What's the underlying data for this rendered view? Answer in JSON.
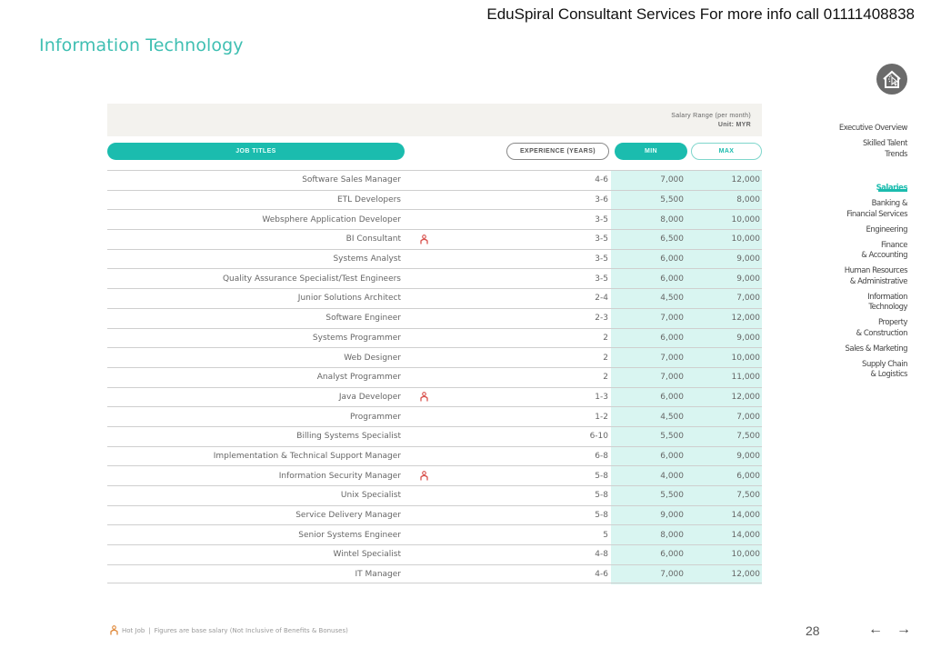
{
  "banner": "EduSpiral Consultant Services For more info call 01111408838",
  "page_title": "Information Technology",
  "salary_header": {
    "line1": "Salary Range (per month)",
    "line2": "Unit: MYR"
  },
  "columns": {
    "job_titles": "JOB TITLES",
    "experience": "EXPERIENCE (YEARS)",
    "min": "MIN",
    "max": "MAX"
  },
  "rows": [
    {
      "title": "Software Sales Manager",
      "hot": false,
      "experience": "4-6",
      "min": "7,000",
      "max": "12,000"
    },
    {
      "title": "ETL Developers",
      "hot": false,
      "experience": "3-6",
      "min": "5,500",
      "max": "8,000"
    },
    {
      "title": "Websphere Application Developer",
      "hot": false,
      "experience": "3-5",
      "min": "8,000",
      "max": "10,000"
    },
    {
      "title": "BI Consultant",
      "hot": true,
      "experience": "3-5",
      "min": "6,500",
      "max": "10,000"
    },
    {
      "title": "Systems Analyst",
      "hot": false,
      "experience": "3-5",
      "min": "6,000",
      "max": "9,000"
    },
    {
      "title": "Quality Assurance Specialist/Test Engineers",
      "hot": false,
      "experience": "3-5",
      "min": "6,000",
      "max": "9,000"
    },
    {
      "title": "Junior Solutions Architect",
      "hot": false,
      "experience": "2-4",
      "min": "4,500",
      "max": "7,000"
    },
    {
      "title": "Software Engineer",
      "hot": false,
      "experience": "2-3",
      "min": "7,000",
      "max": "12,000"
    },
    {
      "title": "Systems Programmer",
      "hot": false,
      "experience": "2",
      "min": "6,000",
      "max": "9,000"
    },
    {
      "title": "Web Designer",
      "hot": false,
      "experience": "2",
      "min": "7,000",
      "max": "10,000"
    },
    {
      "title": "Analyst Programmer",
      "hot": false,
      "experience": "2",
      "min": "7,000",
      "max": "11,000"
    },
    {
      "title": "Java Developer",
      "hot": true,
      "experience": "1-3",
      "min": "6,000",
      "max": "12,000"
    },
    {
      "title": "Programmer",
      "hot": false,
      "experience": "1-2",
      "min": "4,500",
      "max": "7,000"
    },
    {
      "title": "Billing Systems Specialist",
      "hot": false,
      "experience": "6-10",
      "min": "5,500",
      "max": "7,500"
    },
    {
      "title": "Implementation & Technical Support Manager",
      "hot": false,
      "experience": "6-8",
      "min": "6,000",
      "max": "9,000"
    },
    {
      "title": "Information Security Manager",
      "hot": true,
      "experience": "5-8",
      "min": "4,000",
      "max": "6,000"
    },
    {
      "title": "Unix Specialist",
      "hot": false,
      "experience": "5-8",
      "min": "5,500",
      "max": "7,500"
    },
    {
      "title": "Service Delivery Manager",
      "hot": false,
      "experience": "5-8",
      "min": "9,000",
      "max": "14,000"
    },
    {
      "title": "Senior Systems Engineer",
      "hot": false,
      "experience": "5",
      "min": "8,000",
      "max": "14,000"
    },
    {
      "title": "Wintel Specialist",
      "hot": false,
      "experience": "4-8",
      "min": "6,000",
      "max": "10,000"
    },
    {
      "title": "IT Manager",
      "hot": false,
      "experience": "4-6",
      "min": "7,000",
      "max": "12,000"
    }
  ],
  "nav": {
    "home_icon": "home-cursor-icon",
    "items": [
      {
        "label": "Executive Overview",
        "active": false
      },
      {
        "label": "Skilled Talent\nTrends",
        "active": false
      },
      {
        "label": "Salaries",
        "active": true
      },
      {
        "label": "Banking &\nFinancial Services",
        "active": false
      },
      {
        "label": "Engineering",
        "active": false
      },
      {
        "label": "Finance\n& Accounting",
        "active": false
      },
      {
        "label": "Human Resources\n& Administrative",
        "active": false
      },
      {
        "label": "Information\nTechnology",
        "active": false
      },
      {
        "label": "Property\n& Construction",
        "active": false
      },
      {
        "label": "Sales & Marketing",
        "active": false
      },
      {
        "label": "Supply Chain\n& Logistics",
        "active": false
      }
    ]
  },
  "footer": {
    "hot_job_label": "Hot Job",
    "separator": "|",
    "note": "Figures are base salary (Not Inclusive of Benefits & Bonuses)",
    "page_number": "28",
    "prev_icon": "arrow-left-icon",
    "next_icon": "arrow-right-icon",
    "prev_glyph": "←",
    "next_glyph": "→"
  },
  "colors": {
    "accent": "#1bbcae",
    "title": "#3fbfb2",
    "minmax_bg": "#d9f5f1",
    "header_bg": "#f3f2ee",
    "hot_icon": "#d9534f"
  }
}
